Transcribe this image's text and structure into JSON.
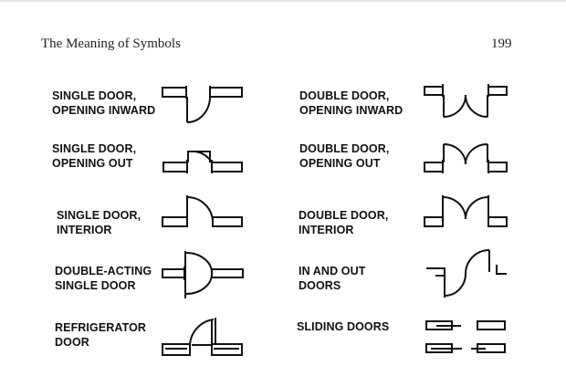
{
  "header": {
    "title": "The Meaning of Symbols",
    "page_number": "199"
  },
  "symbols": [
    {
      "id": "single-door-opening-inward",
      "lines": [
        "SINGLE DOOR,",
        "OPENING INWARD"
      ]
    },
    {
      "id": "double-door-opening-inward",
      "lines": [
        "DOUBLE DOOR,",
        "OPENING INWARD"
      ]
    },
    {
      "id": "single-door-opening-out",
      "lines": [
        "SINGLE DOOR,",
        "OPENING OUT"
      ]
    },
    {
      "id": "double-door-opening-out",
      "lines": [
        "DOUBLE DOOR,",
        "OPENING OUT"
      ]
    },
    {
      "id": "single-door-interior",
      "lines": [
        "SINGLE DOOR,",
        "INTERIOR"
      ]
    },
    {
      "id": "double-door-interior",
      "lines": [
        "DOUBLE DOOR,",
        "INTERIOR"
      ]
    },
    {
      "id": "double-acting-single-door",
      "lines": [
        "DOUBLE-ACTING",
        "SINGLE DOOR"
      ]
    },
    {
      "id": "in-and-out-doors",
      "lines": [
        "IN AND OUT",
        "DOORS"
      ]
    },
    {
      "id": "refrigerator-door",
      "lines": [
        "REFRIGERATOR",
        "DOOR"
      ]
    },
    {
      "id": "sliding-doors",
      "lines": [
        "SLIDING DOORS"
      ]
    }
  ]
}
